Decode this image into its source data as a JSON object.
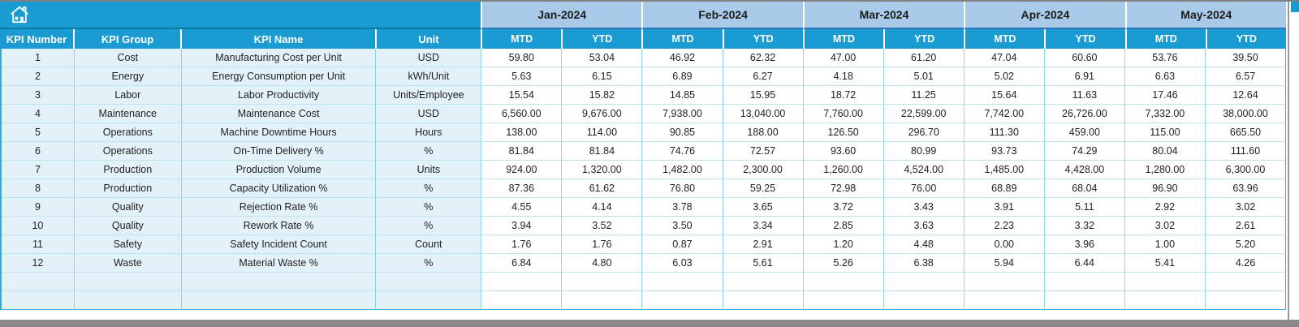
{
  "icons": {
    "home": "house"
  },
  "table": {
    "left_headers": [
      "KPI Number",
      "KPI Group",
      "KPI Name",
      "Unit"
    ],
    "months": [
      "Jan-2024",
      "Feb-2024",
      "Mar-2024",
      "Apr-2024",
      "May-2024"
    ],
    "sub_columns": [
      "MTD",
      "YTD"
    ],
    "empty_row_count": 2,
    "rows": [
      {
        "kpi_number": "1",
        "kpi_group": "Cost",
        "kpi_name": "Manufacturing Cost per Unit",
        "unit": "USD",
        "values": [
          "59.80",
          "53.04",
          "46.92",
          "62.32",
          "47.00",
          "61.20",
          "47.04",
          "60.60",
          "53.76",
          "39.50"
        ]
      },
      {
        "kpi_number": "2",
        "kpi_group": "Energy",
        "kpi_name": "Energy Consumption per Unit",
        "unit": "kWh/Unit",
        "values": [
          "5.63",
          "6.15",
          "6.89",
          "6.27",
          "4.18",
          "5.01",
          "5.02",
          "6.91",
          "6.63",
          "6.57"
        ]
      },
      {
        "kpi_number": "3",
        "kpi_group": "Labor",
        "kpi_name": "Labor Productivity",
        "unit": "Units/Employee",
        "values": [
          "15.54",
          "15.82",
          "14.85",
          "15.95",
          "18.72",
          "11.25",
          "15.64",
          "11.63",
          "17.46",
          "12.64"
        ]
      },
      {
        "kpi_number": "4",
        "kpi_group": "Maintenance",
        "kpi_name": "Maintenance Cost",
        "unit": "USD",
        "values": [
          "6,560.00",
          "9,676.00",
          "7,938.00",
          "13,040.00",
          "7,760.00",
          "22,599.00",
          "7,742.00",
          "26,726.00",
          "7,332.00",
          "38,000.00"
        ]
      },
      {
        "kpi_number": "5",
        "kpi_group": "Operations",
        "kpi_name": "Machine Downtime Hours",
        "unit": "Hours",
        "values": [
          "138.00",
          "114.00",
          "90.85",
          "188.00",
          "126.50",
          "296.70",
          "111.30",
          "459.00",
          "115.00",
          "665.50"
        ]
      },
      {
        "kpi_number": "6",
        "kpi_group": "Operations",
        "kpi_name": "On-Time Delivery %",
        "unit": "%",
        "values": [
          "81.84",
          "81.84",
          "74.76",
          "72.57",
          "93.60",
          "80.99",
          "93.73",
          "74.29",
          "80.04",
          "111.60"
        ]
      },
      {
        "kpi_number": "7",
        "kpi_group": "Production",
        "kpi_name": "Production Volume",
        "unit": "Units",
        "values": [
          "924.00",
          "1,320.00",
          "1,482.00",
          "2,300.00",
          "1,260.00",
          "4,524.00",
          "1,485.00",
          "4,428.00",
          "1,280.00",
          "6,300.00"
        ]
      },
      {
        "kpi_number": "8",
        "kpi_group": "Production",
        "kpi_name": "Capacity Utilization %",
        "unit": "%",
        "values": [
          "87.36",
          "61.62",
          "76.80",
          "59.25",
          "72.98",
          "76.00",
          "68.89",
          "68.04",
          "96.90",
          "63.96"
        ]
      },
      {
        "kpi_number": "9",
        "kpi_group": "Quality",
        "kpi_name": "Rejection Rate %",
        "unit": "%",
        "values": [
          "4.55",
          "4.14",
          "3.78",
          "3.65",
          "3.72",
          "3.43",
          "3.91",
          "5.11",
          "2.92",
          "3.02"
        ]
      },
      {
        "kpi_number": "10",
        "kpi_group": "Quality",
        "kpi_name": "Rework Rate %",
        "unit": "%",
        "values": [
          "3.94",
          "3.52",
          "3.50",
          "3.34",
          "2.85",
          "3.63",
          "2.23",
          "3.32",
          "3.02",
          "2.61"
        ]
      },
      {
        "kpi_number": "11",
        "kpi_group": "Safety",
        "kpi_name": "Safety Incident Count",
        "unit": "Count",
        "values": [
          "1.76",
          "1.76",
          "0.87",
          "2.91",
          "1.20",
          "4.48",
          "0.00",
          "3.96",
          "1.00",
          "5.20"
        ]
      },
      {
        "kpi_number": "12",
        "kpi_group": "Waste",
        "kpi_name": "Material Waste %",
        "unit": "%",
        "values": [
          "6.84",
          "4.80",
          "6.03",
          "5.61",
          "5.26",
          "6.38",
          "5.94",
          "6.44",
          "5.41",
          "4.26"
        ]
      }
    ]
  },
  "colors": {
    "teal_header": "#1A9CD3",
    "month_band": "#A9CAE8",
    "left_cell_bg": "#E3F1F9",
    "grid_line": "#8ED5E5",
    "window_gray": "#8a8a8a"
  }
}
